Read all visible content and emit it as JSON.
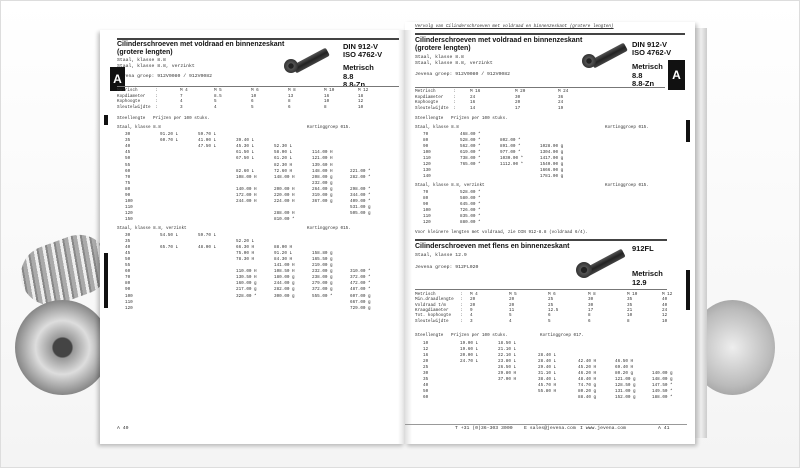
{
  "left_page": {
    "title": "Cilinderschroeven met voldraad en binnenzeskant",
    "title2": "(grotere lengten)",
    "sub1": "Staal, klasse 8.8",
    "sub2": "Staal, klasse 8.8, verzinkt",
    "group": "Jevena groep: 912V0080 / 912V0082",
    "norm1": "DIN 912-V",
    "norm2": "ISO 4762-V",
    "metric": "Metrisch",
    "grade1": "8.8",
    "grade2": "8.8-Zn",
    "tab_letter": "A",
    "spec": [
      [
        "Metrisch",
        ":",
        "M 4",
        "M 5",
        "M 6",
        "M 8",
        "M 10",
        "M 12"
      ],
      [
        "Kopdiameter",
        ":",
        "7",
        "8.5",
        "10",
        "13",
        "16",
        "18"
      ],
      [
        "Kophoogte",
        ":",
        "4",
        "5",
        "6",
        "8",
        "10",
        "12"
      ],
      [
        "Sleutelwijdte",
        ":",
        "3",
        "4",
        "5",
        "6",
        "8",
        "10"
      ]
    ],
    "length_label": "Steellengte",
    "price_note": "Prijzen per 100 stuks.",
    "sections": [
      {
        "label": "Staal, klasse 8.8",
        "discount": "Kortinggroep 015.",
        "rows": [
          [
            "30",
            "91.20 L",
            "59.70 L",
            "",
            "",
            "",
            ""
          ],
          [
            "35",
            "60.70 L",
            "41.00 L",
            "39.40 L",
            "",
            "",
            ""
          ],
          [
            "40",
            "",
            "47.50 L",
            "45.30 L",
            "52.30 L",
            "",
            ""
          ],
          [
            "45",
            "",
            "",
            "61.50 L",
            "58.00 L",
            "114.00 H",
            ""
          ],
          [
            "50",
            "",
            "",
            "67.50 L",
            "61.20 L",
            "121.00 H",
            ""
          ],
          [
            "55",
            "",
            "",
            "",
            "82.30 H",
            "139.60 H",
            ""
          ],
          [
            "60",
            "",
            "",
            "82.60 L",
            "72.60 H",
            "148.00 H",
            "221.00 *"
          ],
          [
            "70",
            "",
            "",
            "108.00 H",
            "148.00 H",
            "208.00 g",
            "282.00 *"
          ],
          [
            "75",
            "",
            "",
            "",
            "",
            "232.00 g",
            ""
          ],
          [
            "80",
            "",
            "",
            "140.00 H",
            "200.00 H",
            "264.00 g",
            "298.00 *"
          ],
          [
            "90",
            "",
            "",
            "172.00 H",
            "220.00 H",
            "319.00 g",
            "344.00 *"
          ],
          [
            "100",
            "",
            "",
            "244.00 H",
            "224.00 H",
            "367.00 g",
            "409.00 *"
          ],
          [
            "110",
            "",
            "",
            "",
            "",
            "",
            "531.00 g"
          ],
          [
            "120",
            "",
            "",
            "",
            "288.00 H",
            "",
            "505.00 g"
          ],
          [
            "150",
            "",
            "",
            "",
            "810.00 *",
            "",
            ""
          ]
        ]
      },
      {
        "label": "Staal, klasse 8.8, verzinkt",
        "discount": "Kortinggroep 015.",
        "rows": [
          [
            "30",
            "54.50 L",
            "59.70 L",
            "",
            "",
            "",
            ""
          ],
          [
            "35",
            "",
            "",
            "52.20 L",
            "",
            "",
            ""
          ],
          [
            "40",
            "65.70 L",
            "48.00 L",
            "66.30 H",
            "88.00 H",
            "",
            ""
          ],
          [
            "45",
            "",
            "",
            "75.00 H",
            "91.20 L",
            "158.80 g",
            ""
          ],
          [
            "50",
            "",
            "",
            "78.30 H",
            "84.30 H",
            "165.50 g",
            ""
          ],
          [
            "55",
            "",
            "",
            "",
            "141.00 H",
            "219.00 g",
            ""
          ],
          [
            "60",
            "",
            "",
            "110.00 H",
            "108.50 H",
            "232.00 g",
            "310.00 *"
          ],
          [
            "70",
            "",
            "",
            "130.50 H",
            "180.00 g",
            "238.00 g",
            "372.00 *"
          ],
          [
            "80",
            "",
            "",
            "160.00 g",
            "244.00 g",
            "279.00 g",
            "472.00 *"
          ],
          [
            "90",
            "",
            "",
            "217.00 g",
            "282.00 g",
            "372.00 g",
            "487.00 *"
          ],
          [
            "100",
            "",
            "",
            "328.00 *",
            "300.00 g",
            "555.00 *",
            "607.00 g"
          ],
          [
            "110",
            "",
            "",
            "",
            "",
            "",
            "667.00 g"
          ],
          [
            "120",
            "",
            "",
            "",
            "",
            "",
            "729.00 g"
          ]
        ]
      }
    ],
    "footer": "A 40"
  },
  "right_page": {
    "continued": "Vervolg van Cilinderschroeven met voldraad en binnenzeskant (grotere lengten)",
    "title": "Cilinderschroeven met voldraad en binnenzeskant",
    "title2": "(grotere lengten)",
    "sub1": "Staal, klasse 8.8",
    "sub2": "Staal, klasse 8.8, verzinkt",
    "group": "Jevena groep: 912V0080 / 912V0082",
    "norm1": "DIN 912-V",
    "norm2": "ISO 4762-V",
    "metric": "Metrisch",
    "grade1": "8.8",
    "grade2": "8.8-Zn",
    "tab_letter": "A",
    "spec": [
      [
        "Metrisch",
        ":",
        "M 16",
        "M 20",
        "M 24"
      ],
      [
        "Kopdiameter",
        ":",
        "24",
        "30",
        "36"
      ],
      [
        "Kophoogte",
        ":",
        "16",
        "20",
        "24"
      ],
      [
        "Sleutelwijdte",
        ":",
        "14",
        "17",
        "19"
      ]
    ],
    "length_label": "Steellengte",
    "price_note": "Prijzen per 100 stuks.",
    "sections": [
      {
        "label": "Staal, klasse 8.8",
        "discount": "Kortinggroep 015.",
        "rows": [
          [
            "70",
            "468.00 *",
            "",
            ""
          ],
          [
            "80",
            "528.00 *",
            "802.00 *",
            ""
          ],
          [
            "90",
            "562.00 *",
            "891.00 *",
            "1028.00 g"
          ],
          [
            "100",
            "619.00 *",
            "977.00 *",
            "1304.00 g"
          ],
          [
            "110",
            "738.00 *",
            "1030.00 *",
            "1417.00 g"
          ],
          [
            "120",
            "765.00 *",
            "1112.00 *",
            "1540.00 g"
          ],
          [
            "130",
            "",
            "",
            "1666.00 g"
          ],
          [
            "140",
            "",
            "",
            "1781.00 g"
          ]
        ]
      },
      {
        "label": "Staal, klasse 8.8, verzinkt",
        "discount": "Kortinggroep 015.",
        "rows": [
          [
            "70",
            "528.00 *",
            "",
            ""
          ],
          [
            "80",
            "580.00 *",
            "",
            ""
          ],
          [
            "90",
            "645.00 *",
            "",
            ""
          ],
          [
            "100",
            "726.00 *",
            "",
            ""
          ],
          [
            "110",
            "835.00 *",
            "",
            ""
          ],
          [
            "120",
            "880.00 *",
            "",
            ""
          ]
        ]
      }
    ],
    "note": "Voor kleinere lengten met voldraad, zie DIN 912-8.8 (voldraad 6/4).",
    "fl": {
      "title": "Cilinderschroeven met flens en binnenzeskant",
      "sub1": "Staal, klasse 12.9",
      "group": "Jevena groep: 912FL020",
      "norm1": "912FL",
      "metric": "Metrisch",
      "grade1": "12.9",
      "spec": [
        [
          "Metrisch",
          ":",
          "M 4",
          "M 5",
          "M 6",
          "M 8",
          "M 10",
          "M 12"
        ],
        [
          "Min.draadlengte",
          ":",
          "20",
          "20",
          "25",
          "30",
          "35",
          "40"
        ],
        [
          "Voldraad t/m",
          ":",
          "20",
          "20",
          "25",
          "30",
          "35",
          "40"
        ],
        [
          "Kraagdiameter",
          ":",
          "9",
          "11",
          "12.5",
          "17",
          "21",
          "24"
        ],
        [
          "Tot. kophoogte",
          ":",
          "4",
          "5",
          "6",
          "8",
          "10",
          "12"
        ],
        [
          "Sleutelwijdte",
          ":",
          "3",
          "4",
          "5",
          "6",
          "8",
          "10"
        ]
      ],
      "length_label": "Steellengte",
      "price_note": "Prijzen per 100 stuks.",
      "discount": "Kortinggroep 017.",
      "rows": [
        [
          "10",
          "19.00 L",
          "18.50 L",
          "",
          "",
          "",
          ""
        ],
        [
          "12",
          "19.60 L",
          "21.10 L",
          "",
          "",
          "",
          ""
        ],
        [
          "16",
          "20.00 L",
          "22.10 L",
          "28.40 L",
          "",
          "",
          ""
        ],
        [
          "20",
          "24.70 L",
          "23.80 L",
          "28.40 L",
          "42.40 H",
          "46.50 H",
          ""
        ],
        [
          "25",
          "",
          "26.50 L",
          "29.40 L",
          "45.20 H",
          "69.40 H",
          ""
        ],
        [
          "30",
          "",
          "29.80 H",
          "31.10 L",
          "46.20 H",
          "80.20 g",
          "140.00 g"
        ],
        [
          "35",
          "",
          "37.00 H",
          "38.40 L",
          "48.40 H",
          "121.00 g",
          "148.00 g"
        ],
        [
          "40",
          "",
          "",
          "45.70 H",
          "74.70 g",
          "128.50 g",
          "147.50 *"
        ],
        [
          "50",
          "",
          "",
          "55.80 H",
          "80.20 g",
          "131.00 g",
          "149.50 *"
        ],
        [
          "60",
          "",
          "",
          "",
          "88.40 g",
          "152.00 g",
          "188.00 *"
        ]
      ]
    },
    "footer_phone": "T +31 (0)36-303 3000",
    "footer_email": "E sales@jevena.com",
    "footer_web": "I www.jevena.com",
    "footer_page": "A 41"
  }
}
